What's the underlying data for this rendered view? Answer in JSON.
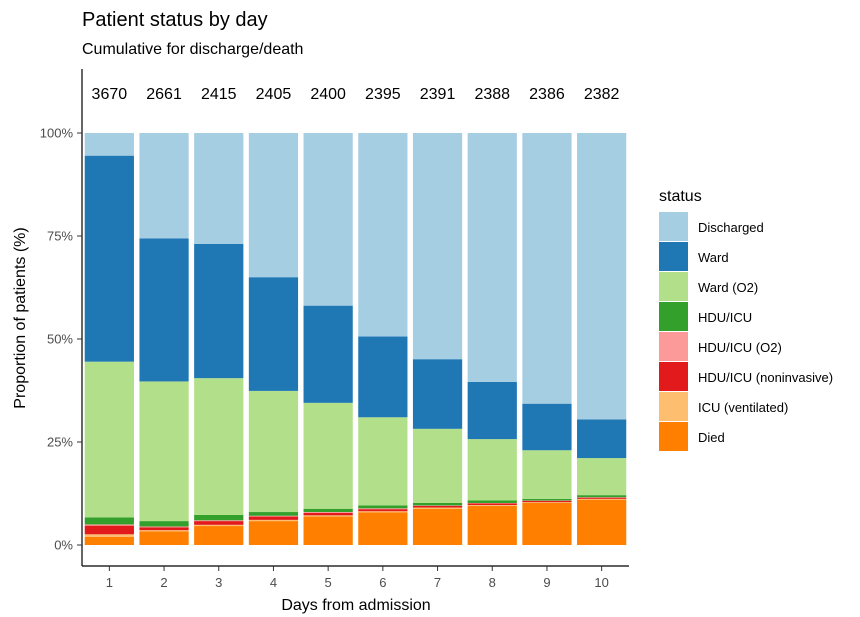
{
  "chart_data": {
    "type": "bar",
    "stacked": true,
    "normalized": true,
    "title": "Patient status by day",
    "subtitle": "Cumulative for discharge/death",
    "xlabel": "Days from admission",
    "ylabel": "Proportion of patients (%)",
    "ylim": [
      0,
      100
    ],
    "yticks": [
      "0%",
      "25%",
      "50%",
      "75%",
      "100%"
    ],
    "categories": [
      "1",
      "2",
      "3",
      "4",
      "5",
      "6",
      "7",
      "8",
      "9",
      "10"
    ],
    "counts": [
      "3670",
      "2661",
      "2415",
      "2405",
      "2400",
      "2395",
      "2391",
      "2388",
      "2386",
      "2382"
    ],
    "legend_title": "status",
    "legend_position": "right",
    "grid": false,
    "series": [
      {
        "name": "Died",
        "color": "#FF7F00",
        "values": [
          2.0,
          3.3,
          4.6,
          5.8,
          6.9,
          7.9,
          8.8,
          9.5,
          10.2,
          11.0
        ]
      },
      {
        "name": "ICU (ventilated)",
        "color": "#FDBF6F",
        "values": [
          0.6,
          0.3,
          0.3,
          0.3,
          0.3,
          0.3,
          0.3,
          0.2,
          0.2,
          0.2
        ]
      },
      {
        "name": "HDU/ICU (noninvasive)",
        "color": "#E31A1C",
        "values": [
          2.1,
          0.7,
          0.9,
          0.8,
          0.6,
          0.5,
          0.4,
          0.4,
          0.3,
          0.3
        ]
      },
      {
        "name": "HDU/ICU (O2)",
        "color": "#FB9A99",
        "values": [
          0.3,
          0.2,
          0.2,
          0.2,
          0.2,
          0.2,
          0.1,
          0.1,
          0.1,
          0.1
        ]
      },
      {
        "name": "HDU/ICU",
        "color": "#33A02C",
        "values": [
          1.7,
          1.3,
          1.3,
          0.9,
          0.8,
          0.7,
          0.6,
          0.6,
          0.4,
          0.5
        ]
      },
      {
        "name": "Ward (O2)",
        "color": "#B2DF8A",
        "values": [
          37.8,
          33.9,
          33.2,
          29.4,
          25.7,
          21.4,
          18.0,
          14.9,
          11.8,
          9.0
        ]
      },
      {
        "name": "Ward",
        "color": "#1F78B4",
        "values": [
          50.0,
          34.7,
          32.6,
          27.6,
          23.6,
          19.6,
          16.9,
          13.9,
          11.3,
          9.4
        ]
      },
      {
        "name": "Discharged",
        "color": "#A6CEE3",
        "values": [
          5.5,
          25.6,
          26.9,
          35.0,
          41.9,
          49.4,
          54.9,
          60.4,
          65.7,
          69.5
        ]
      }
    ]
  }
}
